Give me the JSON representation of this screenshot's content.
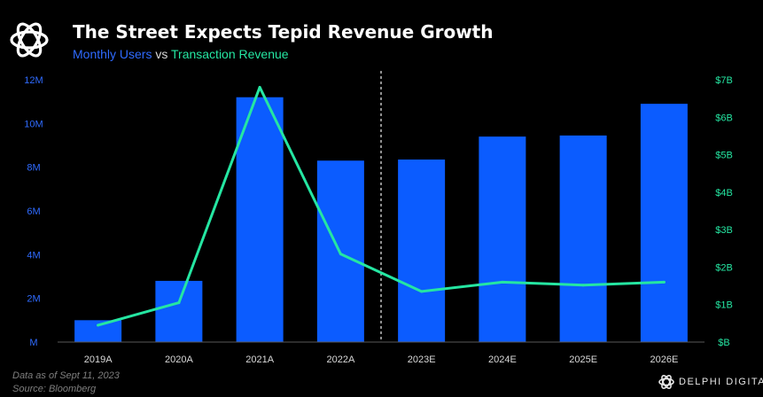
{
  "header": {
    "title": "The Street Expects Tepid Revenue Growth",
    "subtitle_series_a": "Monthly Users",
    "subtitle_connector": "vs",
    "subtitle_series_b": "Transaction Revenue"
  },
  "footer": {
    "note": "Data as of Sept 11, 2023",
    "source": "Source: Bloomberg",
    "brand": "DELPHI DIGITAL"
  },
  "colors": {
    "background": "#000000",
    "bars": "#0b5cff",
    "line": "#25e6a2",
    "left_axis_text": "#2f6bff",
    "right_axis_text": "#25e6a2",
    "divider": "#bfbfbf"
  },
  "chart_data": {
    "type": "bar",
    "categories": [
      "2019A",
      "2020A",
      "2021A",
      "2022A",
      "2023E",
      "2024E",
      "2025E",
      "2026E"
    ],
    "series": [
      {
        "name": "Monthly Users",
        "type": "bar",
        "axis": "left",
        "values": [
          1000000,
          2800000,
          11200000,
          8300000,
          8350000,
          9400000,
          9450000,
          10900000
        ]
      },
      {
        "name": "Transaction Revenue",
        "type": "line",
        "axis": "right",
        "values": [
          0.45,
          1.05,
          6.8,
          2.35,
          1.35,
          1.6,
          1.52,
          1.6
        ]
      }
    ],
    "left_axis": {
      "ylim": [
        0,
        12000000
      ],
      "ticks": [
        0,
        2000000,
        4000000,
        6000000,
        8000000,
        10000000,
        12000000
      ],
      "tick_labels": [
        "M",
        "2M",
        "4M",
        "6M",
        "8M",
        "10M",
        "12M"
      ]
    },
    "right_axis": {
      "ylim": [
        0,
        7
      ],
      "ticks": [
        0,
        1,
        2,
        3,
        4,
        5,
        6,
        7
      ],
      "tick_labels": [
        "$B",
        "$1B",
        "$2B",
        "$3B",
        "$4B",
        "$5B",
        "$6B",
        "$7B"
      ]
    },
    "divider_after_category": "2022A",
    "grid": false,
    "legend": "subtitle"
  }
}
